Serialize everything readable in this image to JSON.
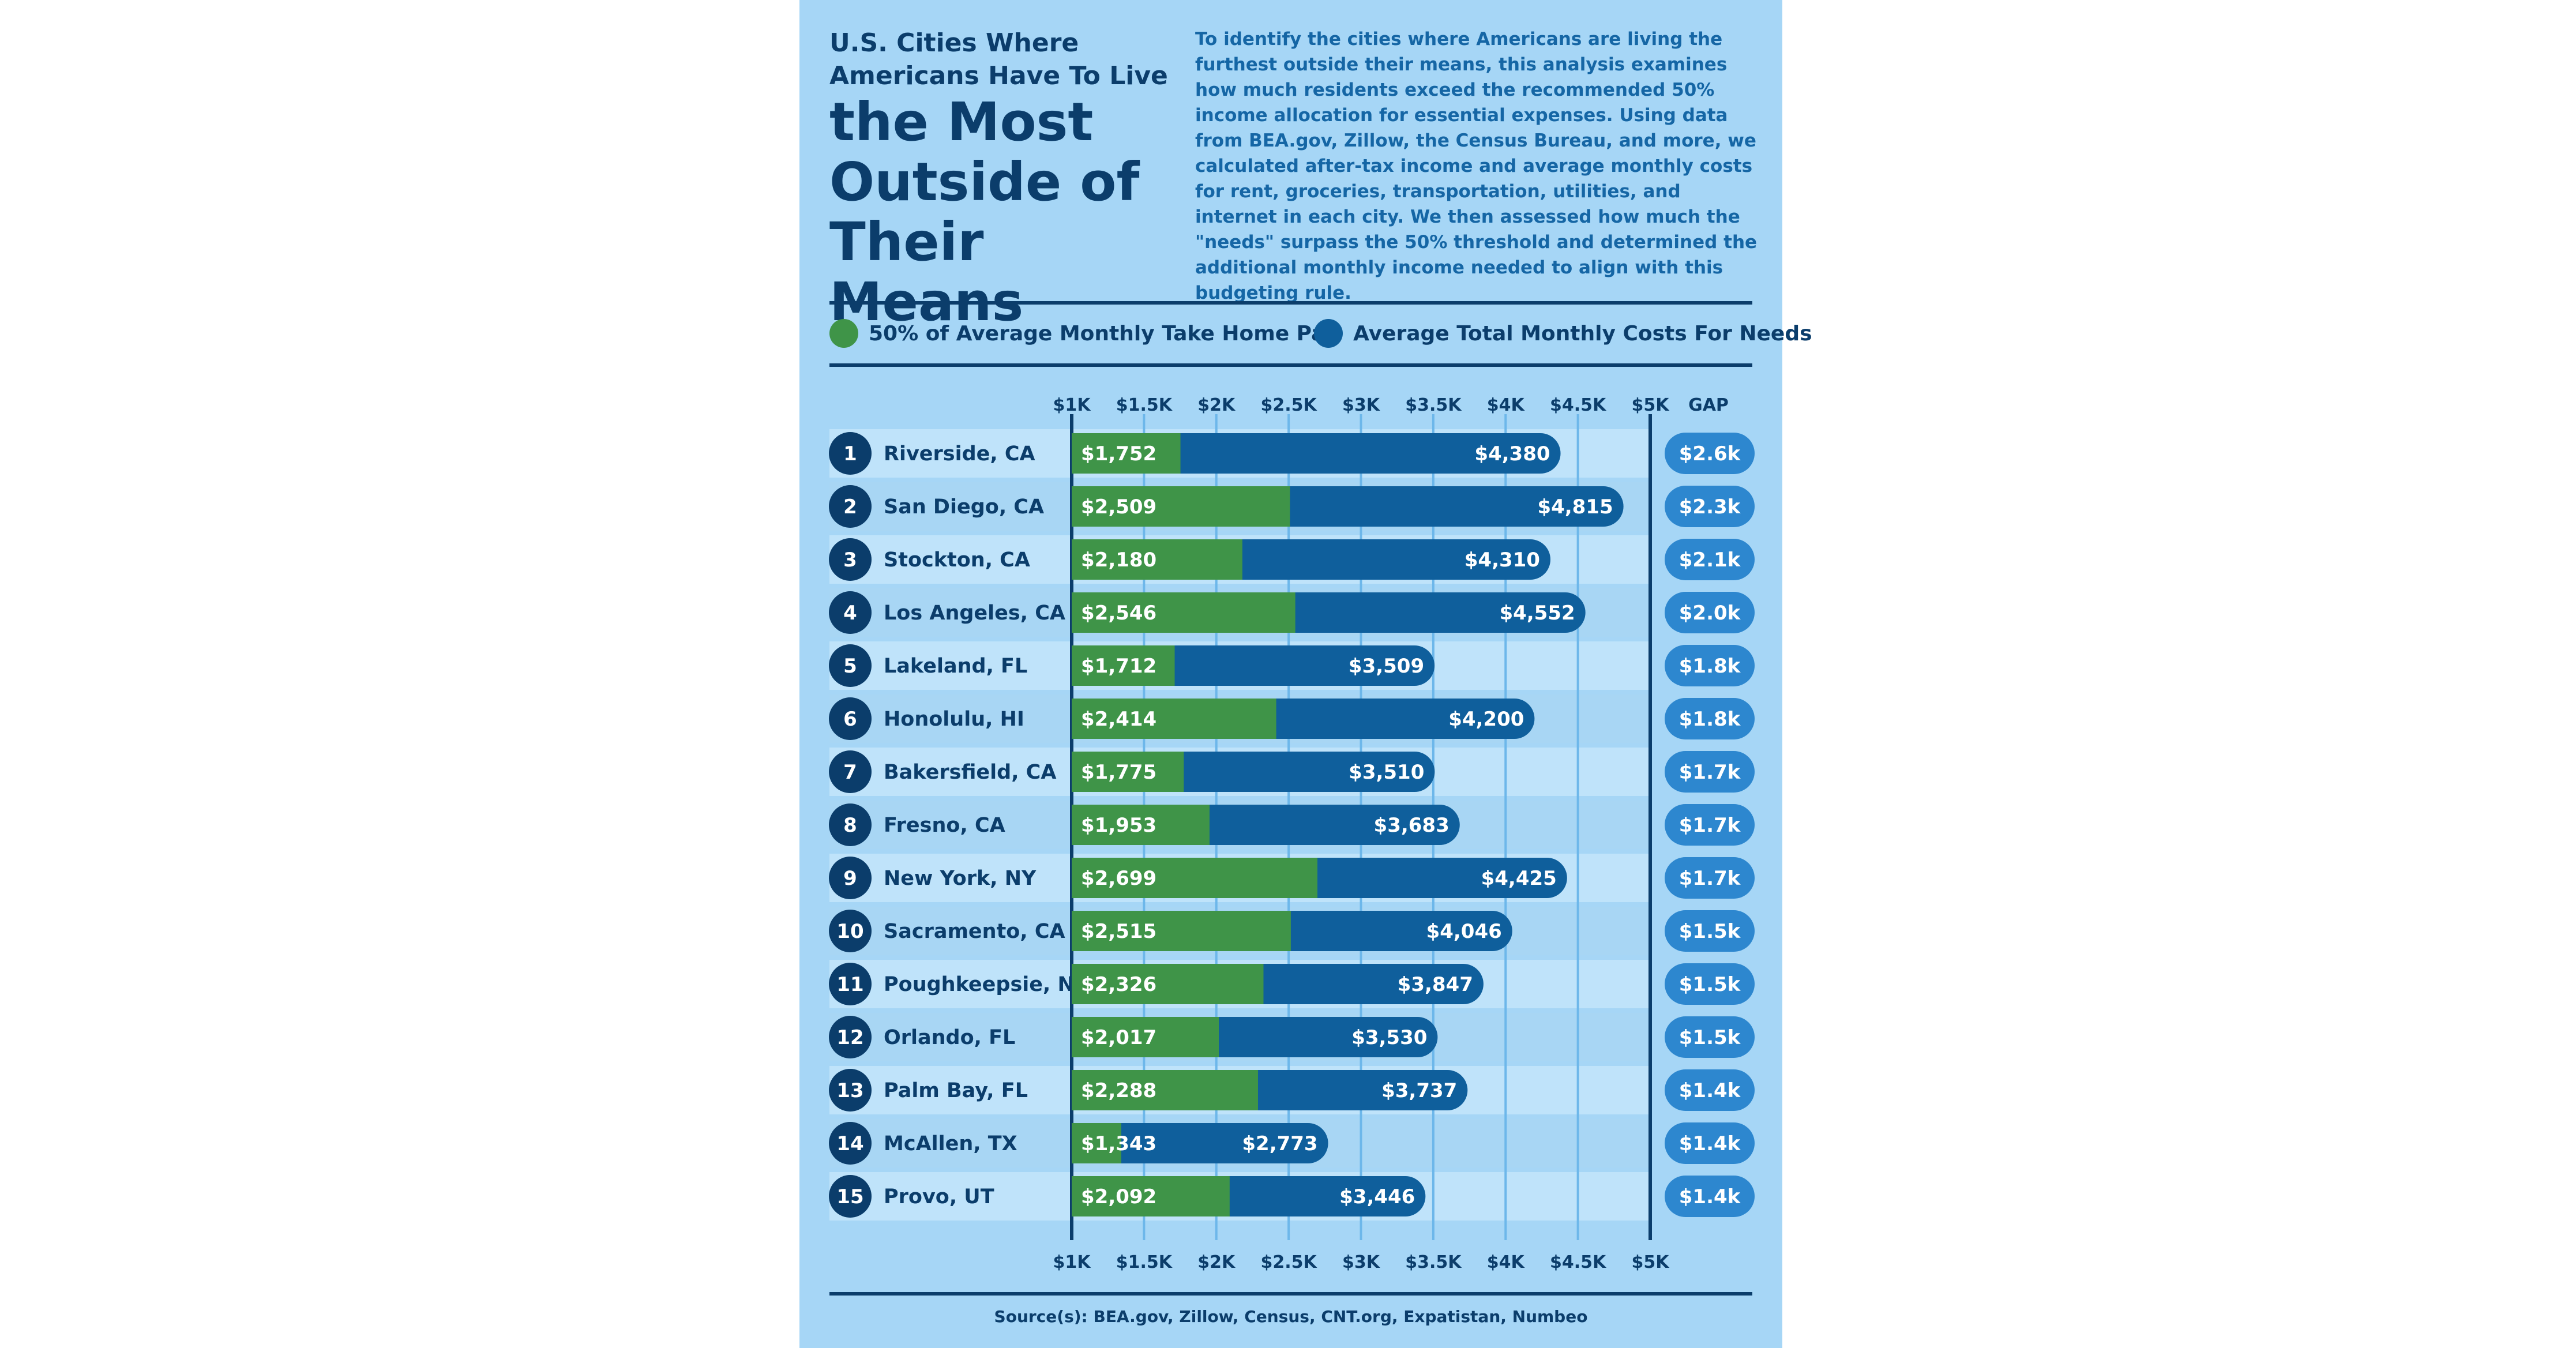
{
  "header": {
    "subtitle": "U.S. Cities Where Americans Have To Live",
    "title": "the Most Outside of Their Means",
    "intro": "To identify the cities where Americans are living the furthest outside their means, this analysis examines how much residents exceed the recommended 50% income allocation for essential expenses. Using data from BEA.gov, Zillow, the Census Bureau, and more, we calculated after-tax income and average monthly costs for rent, groceries, transportation, utilities, and internet in each city. We then assessed how much the \"needs\" surpass the 50% threshold and determined the additional monthly income needed to align with this budgeting rule."
  },
  "legend": {
    "take_home": "50% of Average Monthly Take Home Pay",
    "needs": "Average Total Monthly Costs For Needs"
  },
  "colors": {
    "green": "#3f9448",
    "blue": "#0f5f9c",
    "navy": "#0b3d6b",
    "gap_badge": "#2d87cf",
    "row_light": "#bfe3fa",
    "row_alt": "#a8d6f4",
    "background": "#a6d6f6"
  },
  "source": "Source(s): BEA.gov, Zillow, Census, CNT.org, Expatistan, Numbeo",
  "chart_data": {
    "type": "bar",
    "orientation": "horizontal",
    "xlim": [
      1000,
      5000
    ],
    "tick_values": [
      1000,
      1500,
      2000,
      2500,
      3000,
      3500,
      4000,
      4500,
      5000
    ],
    "tick_labels": [
      "$1K",
      "$1.5K",
      "$2K",
      "$2.5K",
      "$3K",
      "$3.5K",
      "$4K",
      "$4.5K",
      "$5K"
    ],
    "gap_header": "GAP",
    "grid": true,
    "ranks": [
      "1",
      "2",
      "3",
      "4",
      "5",
      "6",
      "7",
      "8",
      "9",
      "10",
      "11",
      "12",
      "13",
      "14",
      "15"
    ],
    "categories": [
      "Riverside, CA",
      "San Diego, CA",
      "Stockton, CA",
      "Los Angeles, CA",
      "Lakeland, FL",
      "Honolulu, HI",
      "Bakersfield, CA",
      "Fresno, CA",
      "New York, NY",
      "Sacramento, CA",
      "Poughkeepsie, NY",
      "Orlando, FL",
      "Palm Bay, FL",
      "McAllen, TX",
      "Provo, UT"
    ],
    "series": [
      {
        "name": "50% of Average Monthly Take Home Pay",
        "values": [
          1752,
          2509,
          2180,
          2546,
          1712,
          2414,
          1775,
          1953,
          2699,
          2515,
          2326,
          2017,
          2288,
          1343,
          2092
        ],
        "labels": [
          "$1,752",
          "$2,509",
          "$2,180",
          "$2,546",
          "$1,712",
          "$2,414",
          "$1,775",
          "$1,953",
          "$2,699",
          "$2,515",
          "$2,326",
          "$2,017",
          "$2,288",
          "$1,343",
          "$2,092"
        ]
      },
      {
        "name": "Average Total Monthly Costs For Needs",
        "values": [
          4380,
          4815,
          4310,
          4552,
          3509,
          4200,
          3510,
          3683,
          4425,
          4046,
          3847,
          3530,
          3737,
          2773,
          3446
        ],
        "labels": [
          "$4,380",
          "$4,815",
          "$4,310",
          "$4,552",
          "$3,509",
          "$4,200",
          "$3,510",
          "$3,683",
          "$4,425",
          "$4,046",
          "$3,847",
          "$3,530",
          "$3,737",
          "$2,773",
          "$3,446"
        ]
      }
    ],
    "gap_labels": [
      "$2.6k",
      "$2.3k",
      "$2.1k",
      "$2.0k",
      "$1.8k",
      "$1.8k",
      "$1.7k",
      "$1.7k",
      "$1.7k",
      "$1.5k",
      "$1.5k",
      "$1.5k",
      "$1.4k",
      "$1.4k",
      "$1.4k"
    ]
  }
}
